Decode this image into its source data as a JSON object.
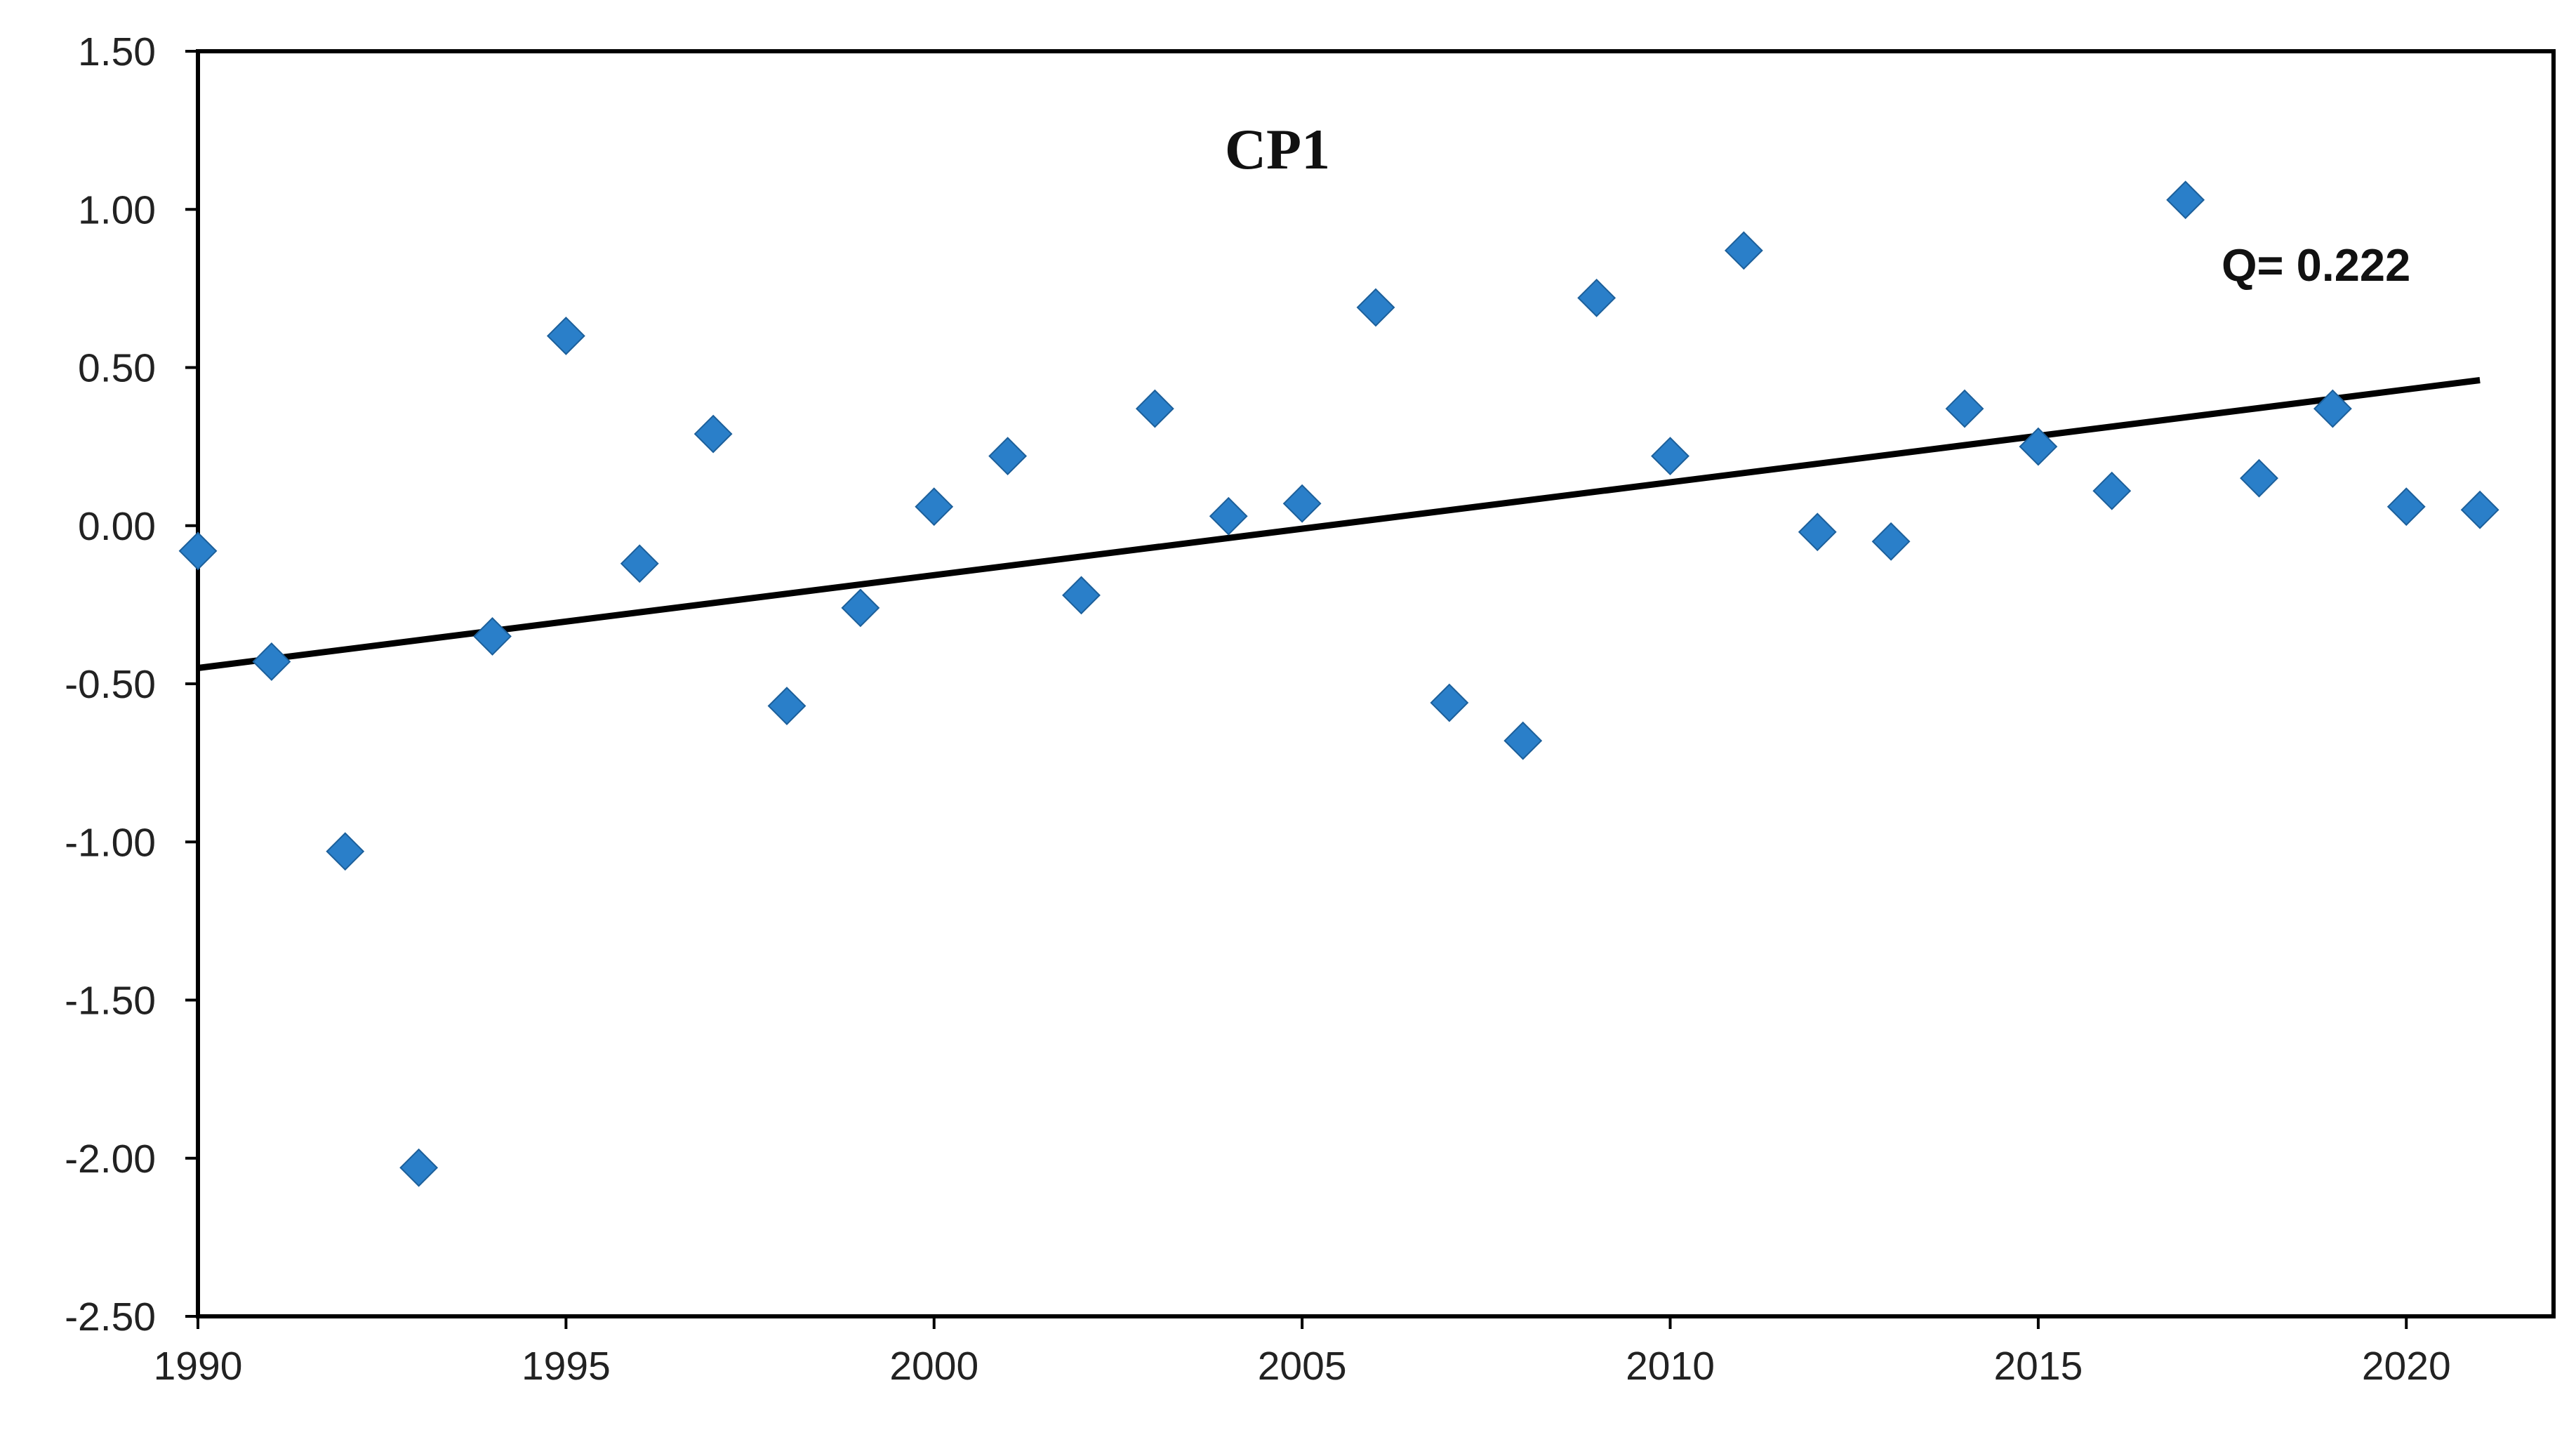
{
  "chart_data": {
    "type": "scatter",
    "title": "CP1",
    "xlabel": "",
    "ylabel": "",
    "xlim": [
      1990,
      2022
    ],
    "ylim": [
      -2.5,
      1.5
    ],
    "x_ticks": [
      1990,
      1995,
      2000,
      2005,
      2010,
      2015,
      2020
    ],
    "y_ticks": [
      {
        "value": 1.5,
        "label": "1.50"
      },
      {
        "value": 1.0,
        "label": "1.00"
      },
      {
        "value": 0.5,
        "label": "0.50"
      },
      {
        "value": 0.0,
        "label": "0.00"
      },
      {
        "value": -0.5,
        "label": "-0.50"
      },
      {
        "value": -1.0,
        "label": "-1.00"
      },
      {
        "value": -1.5,
        "label": "-1.50"
      },
      {
        "value": -2.0,
        "label": "-2.00"
      },
      {
        "value": -2.5,
        "label": "-2.50"
      }
    ],
    "grid": false,
    "marker": "diamond",
    "marker_color": "#2a7fc9",
    "line_color": "#000000",
    "series": [
      {
        "x": [
          1990,
          1991,
          1992,
          1993,
          1994,
          1995,
          1996,
          1997,
          1998,
          1999,
          2000,
          2001,
          2002,
          2003,
          2004,
          2005,
          2006,
          2007,
          2008,
          2009,
          2010,
          2011,
          2012,
          2013,
          2014,
          2015,
          2016,
          2017,
          2018,
          2019,
          2020,
          2021
        ],
        "values": [
          -0.08,
          -0.43,
          -1.03,
          -2.03,
          -0.35,
          0.6,
          -0.12,
          0.29,
          -0.57,
          -0.26,
          0.06,
          0.22,
          -0.22,
          0.37,
          0.03,
          0.07,
          0.69,
          -0.56,
          -0.68,
          0.72,
          0.22,
          0.87,
          -0.02,
          -0.05,
          0.37,
          0.25,
          0.11,
          1.03,
          0.15,
          0.37,
          0.06,
          0.05
        ]
      }
    ],
    "trendline": {
      "x": [
        1990,
        2021
      ],
      "y": [
        -0.45,
        0.46
      ]
    },
    "annotation": "Q= 0.222"
  }
}
